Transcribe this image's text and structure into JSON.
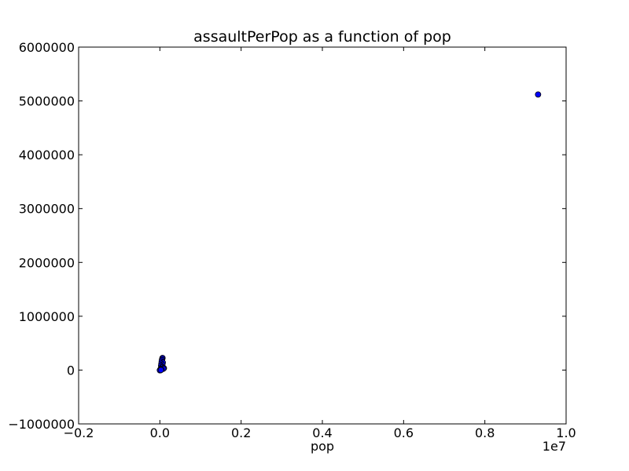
{
  "chart_data": {
    "type": "scatter",
    "title": "assaultPerPop as a function of pop",
    "xlabel": "pop",
    "ylabel": "",
    "x_offset_label": "1e7",
    "xlim": [
      -0.2,
      1.0
    ],
    "ylim": [
      -1000000,
      6000000
    ],
    "x_ticks": [
      -0.2,
      0.0,
      0.2,
      0.4,
      0.6,
      0.8,
      1.0
    ],
    "x_tick_labels": [
      "−0.2",
      "0.0",
      "0.2",
      "0.4",
      "0.6",
      "0.8",
      "1.0"
    ],
    "y_ticks": [
      -1000000,
      0,
      1000000,
      2000000,
      3000000,
      4000000,
      5000000,
      6000000
    ],
    "y_tick_labels": [
      "−1000000",
      "0",
      "1000000",
      "2000000",
      "3000000",
      "4000000",
      "5000000",
      "6000000"
    ],
    "grid": false,
    "legend": "none",
    "marker_color": "#0000ff",
    "marker_edge_color": "#000000",
    "points": [
      {
        "x": 0.931,
        "y": 5120000
      },
      {
        "x": 0.0065,
        "y": 225000
      },
      {
        "x": 0.0058,
        "y": 205000
      },
      {
        "x": 0.0052,
        "y": 185000
      },
      {
        "x": 0.0045,
        "y": 160000
      },
      {
        "x": 0.0072,
        "y": 140000
      },
      {
        "x": 0.0038,
        "y": 120000
      },
      {
        "x": 0.0062,
        "y": 100000
      },
      {
        "x": 0.003,
        "y": 80000
      },
      {
        "x": 0.0055,
        "y": 60000
      },
      {
        "x": 0.0048,
        "y": 45000
      },
      {
        "x": 0.01,
        "y": 35000
      },
      {
        "x": 0.0085,
        "y": 25000
      },
      {
        "x": 0.002,
        "y": 20000
      },
      {
        "x": 0.004,
        "y": 12000
      },
      {
        "x": 0.001,
        "y": 8000
      },
      {
        "x": 0.0005,
        "y": 3000
      },
      {
        "x": 0.0015,
        "y": -2000
      },
      {
        "x": 0.0,
        "y": -5000
      },
      {
        "x": 0.0025,
        "y": 1000
      }
    ]
  }
}
